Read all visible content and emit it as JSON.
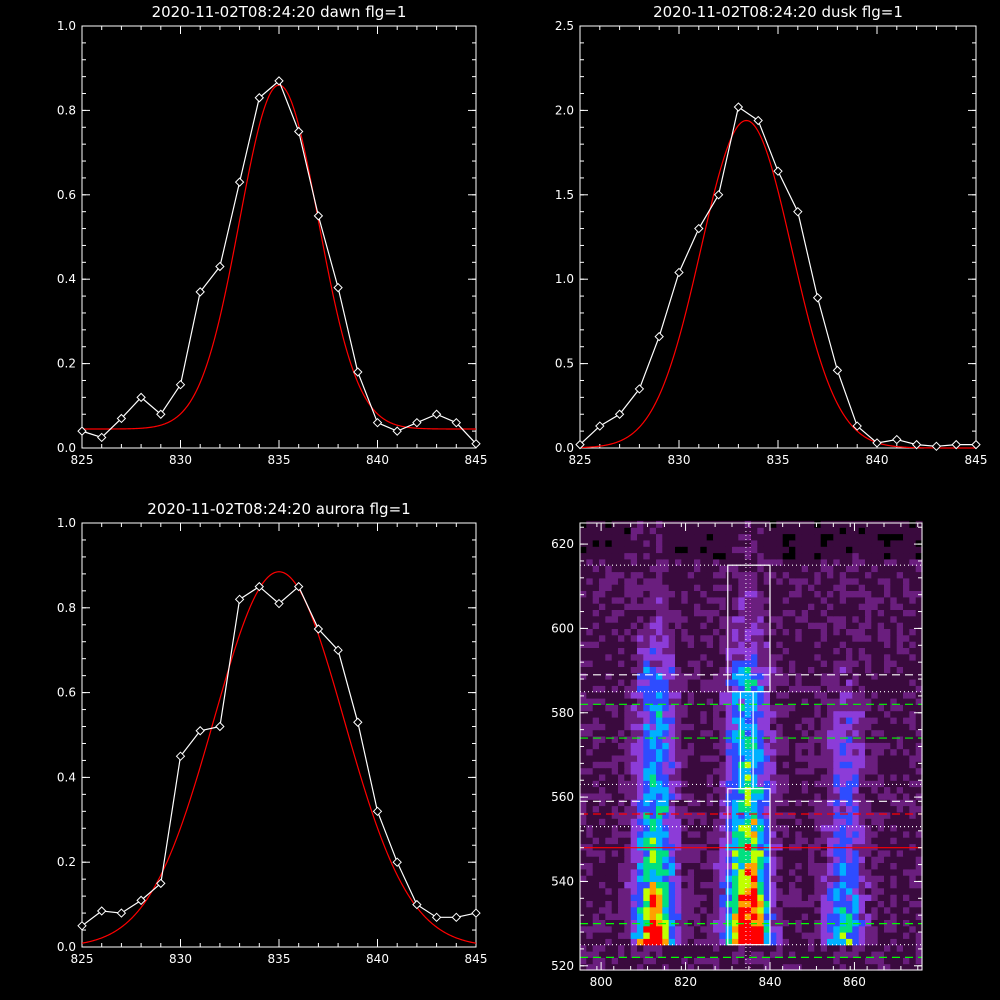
{
  "chart_data": [
    {
      "id": "dawn",
      "type": "line",
      "title": "2020-11-02T08:24:20 dawn flg=1",
      "xlim": [
        825,
        845
      ],
      "ylim": [
        0,
        1.0
      ],
      "xticks": [
        "825",
        "830",
        "835",
        "840",
        "845"
      ],
      "yticks": [
        "0.0",
        "0.2",
        "0.4",
        "0.6",
        "0.8",
        "1.0"
      ],
      "series": [
        {
          "kind": "observed",
          "color": "#ffffff",
          "marker": "diamond",
          "x": [
            825,
            826,
            827,
            828,
            829,
            830,
            831,
            832,
            833,
            834,
            835,
            836,
            837,
            838,
            839,
            840,
            841,
            842,
            843,
            844,
            845
          ],
          "y": [
            0.04,
            0.025,
            0.07,
            0.12,
            0.08,
            0.15,
            0.37,
            0.43,
            0.63,
            0.83,
            0.87,
            0.75,
            0.55,
            0.38,
            0.18,
            0.06,
            0.04,
            0.06,
            0.08,
            0.06,
            0.01
          ]
        },
        {
          "kind": "fit",
          "color": "#ff0000",
          "baseline": 0.045,
          "amplitude": 0.815,
          "center": 835.0,
          "sigma": 2.0
        }
      ]
    },
    {
      "id": "dusk",
      "type": "line",
      "title": "2020-11-02T08:24:20 dusk flg=1",
      "xlim": [
        825,
        845
      ],
      "ylim": [
        0,
        2.5
      ],
      "xticks": [
        "825",
        "830",
        "835",
        "840",
        "845"
      ],
      "yticks": [
        "0.0",
        "0.5",
        "1.0",
        "1.5",
        "2.0",
        "2.5"
      ],
      "series": [
        {
          "kind": "observed",
          "color": "#ffffff",
          "marker": "diamond",
          "x": [
            825,
            826,
            827,
            828,
            829,
            830,
            831,
            832,
            833,
            834,
            835,
            836,
            837,
            838,
            839,
            840,
            841,
            842,
            843,
            844,
            845
          ],
          "y": [
            0.02,
            0.13,
            0.2,
            0.35,
            0.66,
            1.04,
            1.3,
            1.5,
            2.02,
            1.94,
            1.64,
            1.4,
            0.89,
            0.46,
            0.13,
            0.03,
            0.05,
            0.02,
            0.01,
            0.02,
            0.02
          ]
        },
        {
          "kind": "fit",
          "color": "#ff0000",
          "baseline": 0.0,
          "amplitude": 1.94,
          "center": 833.4,
          "sigma": 2.3
        }
      ]
    },
    {
      "id": "aurora",
      "type": "line",
      "title": "2020-11-02T08:24:20 aurora flg=1",
      "xlim": [
        825,
        845
      ],
      "ylim": [
        0,
        1.0
      ],
      "xticks": [
        "825",
        "830",
        "835",
        "840",
        "845"
      ],
      "yticks": [
        "0.0",
        "0.2",
        "0.4",
        "0.6",
        "0.8",
        "1.0"
      ],
      "series": [
        {
          "kind": "observed",
          "color": "#ffffff",
          "marker": "diamond",
          "x": [
            825,
            826,
            827,
            828,
            829,
            830,
            831,
            832,
            833,
            834,
            835,
            836,
            837,
            838,
            839,
            840,
            841,
            842,
            843,
            844,
            845
          ],
          "y": [
            0.05,
            0.085,
            0.08,
            0.11,
            0.15,
            0.45,
            0.51,
            0.52,
            0.82,
            0.85,
            0.81,
            0.85,
            0.75,
            0.7,
            0.53,
            0.32,
            0.2,
            0.1,
            0.07,
            0.07,
            0.08
          ]
        },
        {
          "kind": "fit",
          "color": "#ff0000",
          "baseline": 0.0,
          "amplitude": 0.885,
          "center": 835.0,
          "sigma": 3.3
        }
      ]
    },
    {
      "id": "image",
      "type": "heatmap",
      "title": "",
      "xlim": [
        795,
        876
      ],
      "ylim": [
        519,
        625
      ],
      "xticks": [
        "800",
        "820",
        "840",
        "860"
      ],
      "yticks": [
        "520",
        "540",
        "560",
        "580",
        "600",
        "620"
      ],
      "colormap": [
        "#000000",
        "#3a0a3e",
        "#6a1e7e",
        "#8c3cd8",
        "#2e4cff",
        "#00b0ff",
        "#00e080",
        "#c0ff00",
        "#ffa000",
        "#ff0000"
      ],
      "emission_columns": [
        {
          "x": 812,
          "y_range": [
            525,
            590
          ],
          "peak": 0.85
        },
        {
          "x": 834,
          "y_range": [
            525,
            590
          ],
          "peak": 1.0
        },
        {
          "x": 857,
          "y_range": [
            525,
            580
          ],
          "peak": 0.45
        }
      ],
      "boxes": [
        {
          "x": [
            830,
            840
          ],
          "y": [
            585,
            615
          ],
          "color": "#ffffff"
        },
        {
          "x": [
            833,
            836
          ],
          "y": [
            562,
            585
          ],
          "color": "#ffffff"
        },
        {
          "x": [
            830,
            840
          ],
          "y": [
            525,
            562
          ],
          "color": "#ffffff"
        }
      ],
      "vertical_dotted": [
        {
          "x": 834.3,
          "color": "#ffffff"
        },
        {
          "x": 835.3,
          "color": "#ff66ff"
        }
      ],
      "horizontal_lines": [
        {
          "y": 615,
          "style": "dotted",
          "color": "#ffffff"
        },
        {
          "y": 589,
          "style": "dashed",
          "color": "#ffffff"
        },
        {
          "y": 585,
          "style": "dotted",
          "color": "#ffffff"
        },
        {
          "y": 582,
          "style": "dashed",
          "color": "#00ff00"
        },
        {
          "y": 574,
          "style": "dashed",
          "color": "#00ff00"
        },
        {
          "y": 563,
          "style": "dotted",
          "color": "#ffffff"
        },
        {
          "y": 559,
          "style": "dashed",
          "color": "#ffffff"
        },
        {
          "y": 556,
          "style": "dashed",
          "color": "#ff0000"
        },
        {
          "y": 553,
          "style": "dotted",
          "color": "#ffffff"
        },
        {
          "y": 548,
          "style": "solid",
          "color": "#ff0000"
        },
        {
          "y": 530,
          "style": "dashed",
          "color": "#00ff00"
        },
        {
          "y": 525,
          "style": "dotted",
          "color": "#ffffff"
        },
        {
          "y": 522,
          "style": "dashed",
          "color": "#00ff00"
        }
      ]
    }
  ]
}
